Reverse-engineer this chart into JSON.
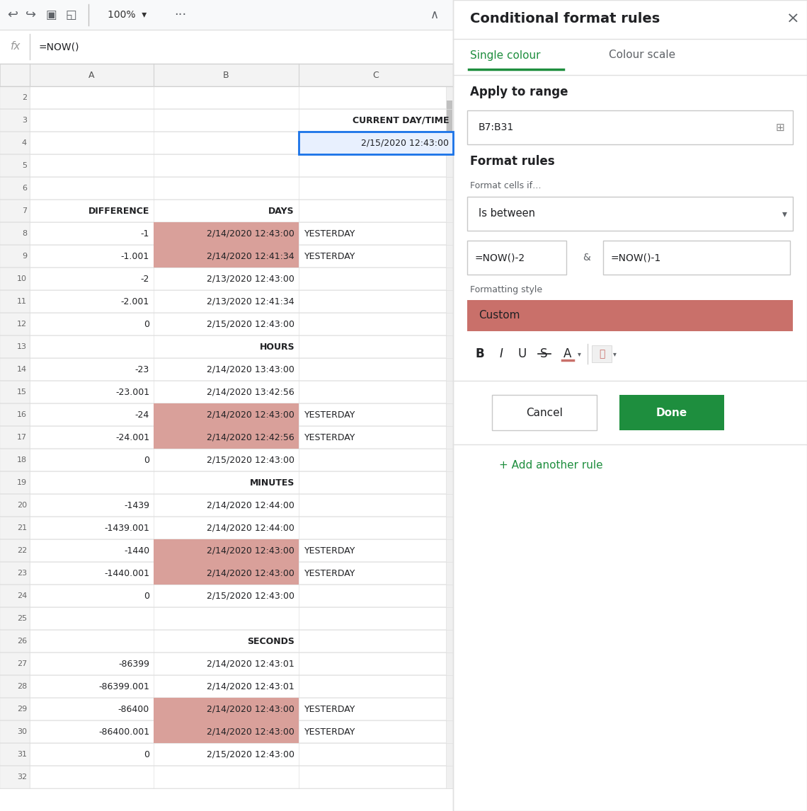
{
  "bg_color": "#ffffff",
  "rows": [
    {
      "row": 2,
      "col_A": "",
      "col_B": "",
      "col_C": "CURRENT DAY/TIME",
      "c_bold": true,
      "c_align": "right",
      "highlight_B": false
    },
    {
      "row": 3,
      "col_A": "",
      "col_B": "",
      "col_C": "2/15/2020 12:43:00",
      "c_bold": false,
      "c_align": "right",
      "highlight_B": false,
      "selected_C": true
    },
    {
      "row": 4,
      "col_A": "",
      "col_B": "",
      "col_C": "",
      "highlight_B": false
    },
    {
      "row": 5,
      "col_A": "",
      "col_B": "",
      "col_C": "",
      "highlight_B": false
    },
    {
      "row": 6,
      "col_A": "DIFFERENCE",
      "col_B": "DAYS",
      "col_C": "",
      "a_bold": true,
      "b_bold": true,
      "b_align": "right",
      "a_align": "right",
      "highlight_B": false
    },
    {
      "row": 7,
      "col_A": "-1",
      "col_B": "2/14/2020 12:43:00",
      "col_C": "YESTERDAY",
      "a_align": "right",
      "b_align": "right",
      "highlight_B": true
    },
    {
      "row": 8,
      "col_A": "-1.001",
      "col_B": "2/14/2020 12:41:34",
      "col_C": "YESTERDAY",
      "a_align": "right",
      "b_align": "right",
      "highlight_B": true
    },
    {
      "row": 9,
      "col_A": "-2",
      "col_B": "2/13/2020 12:43:00",
      "col_C": "",
      "a_align": "right",
      "b_align": "right",
      "highlight_B": false
    },
    {
      "row": 10,
      "col_A": "-2.001",
      "col_B": "2/13/2020 12:41:34",
      "col_C": "",
      "a_align": "right",
      "b_align": "right",
      "highlight_B": false
    },
    {
      "row": 11,
      "col_A": "0",
      "col_B": "2/15/2020 12:43:00",
      "col_C": "",
      "a_align": "right",
      "b_align": "right",
      "highlight_B": false
    },
    {
      "row": 12,
      "col_A": "",
      "col_B": "HOURS",
      "col_C": "",
      "b_bold": true,
      "b_align": "right",
      "highlight_B": false
    },
    {
      "row": 13,
      "col_A": "-23",
      "col_B": "2/14/2020 13:43:00",
      "col_C": "",
      "a_align": "right",
      "b_align": "right",
      "highlight_B": false
    },
    {
      "row": 14,
      "col_A": "-23.001",
      "col_B": "2/14/2020 13:42:56",
      "col_C": "",
      "a_align": "right",
      "b_align": "right",
      "highlight_B": false
    },
    {
      "row": 15,
      "col_A": "-24",
      "col_B": "2/14/2020 12:43:00",
      "col_C": "YESTERDAY",
      "a_align": "right",
      "b_align": "right",
      "highlight_B": true
    },
    {
      "row": 16,
      "col_A": "-24.001",
      "col_B": "2/14/2020 12:42:56",
      "col_C": "YESTERDAY",
      "a_align": "right",
      "b_align": "right",
      "highlight_B": true
    },
    {
      "row": 17,
      "col_A": "0",
      "col_B": "2/15/2020 12:43:00",
      "col_C": "",
      "a_align": "right",
      "b_align": "right",
      "highlight_B": false
    },
    {
      "row": 18,
      "col_A": "",
      "col_B": "MINUTES",
      "col_C": "",
      "b_bold": true,
      "b_align": "right",
      "highlight_B": false
    },
    {
      "row": 19,
      "col_A": "-1439",
      "col_B": "2/14/2020 12:44:00",
      "col_C": "",
      "a_align": "right",
      "b_align": "right",
      "highlight_B": false
    },
    {
      "row": 20,
      "col_A": "-1439.001",
      "col_B": "2/14/2020 12:44:00",
      "col_C": "",
      "a_align": "right",
      "b_align": "right",
      "highlight_B": false
    },
    {
      "row": 21,
      "col_A": "-1440",
      "col_B": "2/14/2020 12:43:00",
      "col_C": "YESTERDAY",
      "a_align": "right",
      "b_align": "right",
      "highlight_B": true
    },
    {
      "row": 22,
      "col_A": "-1440.001",
      "col_B": "2/14/2020 12:43:00",
      "col_C": "YESTERDAY",
      "a_align": "right",
      "b_align": "right",
      "highlight_B": true
    },
    {
      "row": 23,
      "col_A": "0",
      "col_B": "2/15/2020 12:43:00",
      "col_C": "",
      "a_align": "right",
      "b_align": "right",
      "highlight_B": false
    },
    {
      "row": 24,
      "col_A": "",
      "col_B": "",
      "col_C": "",
      "highlight_B": false
    },
    {
      "row": 25,
      "col_A": "",
      "col_B": "SECONDS",
      "col_C": "",
      "b_bold": true,
      "b_align": "right",
      "highlight_B": false
    },
    {
      "row": 26,
      "col_A": "-86399",
      "col_B": "2/14/2020 12:43:01",
      "col_C": "",
      "a_align": "right",
      "b_align": "right",
      "highlight_B": false
    },
    {
      "row": 27,
      "col_A": "-86399.001",
      "col_B": "2/14/2020 12:43:01",
      "col_C": "",
      "a_align": "right",
      "b_align": "right",
      "highlight_B": false
    },
    {
      "row": 28,
      "col_A": "-86400",
      "col_B": "2/14/2020 12:43:00",
      "col_C": "YESTERDAY",
      "a_align": "right",
      "b_align": "right",
      "highlight_B": true
    },
    {
      "row": 29,
      "col_A": "-86400.001",
      "col_B": "2/14/2020 12:43:00",
      "col_C": "YESTERDAY",
      "a_align": "right",
      "b_align": "right",
      "highlight_B": true
    },
    {
      "row": 30,
      "col_A": "0",
      "col_B": "2/15/2020 12:43:00",
      "col_C": "",
      "a_align": "right",
      "b_align": "right",
      "highlight_B": false
    },
    {
      "row": 31,
      "col_A": "",
      "col_B": "",
      "col_C": "",
      "highlight_B": false
    }
  ],
  "panel": {
    "title": "Conditional format rules",
    "tab1": "Single colour",
    "tab2": "Colour scale",
    "apply_label": "Apply to range",
    "range_value": "B7:B31",
    "format_rules_label": "Format rules",
    "format_cells_label": "Format cells if…",
    "dropdown_value": "Is between",
    "formula1": "=NOW()-2",
    "formula2": "=NOW()-1",
    "and_label": "&",
    "formatting_style_label": "Formatting style",
    "custom_label": "Custom",
    "custom_bg": "#c9706a",
    "cancel_btn": "Cancel",
    "done_btn": "Done",
    "done_btn_bg": "#1e8e3e",
    "add_rule_label": "+ Add another rule",
    "add_rule_color": "#1e8e3e"
  }
}
